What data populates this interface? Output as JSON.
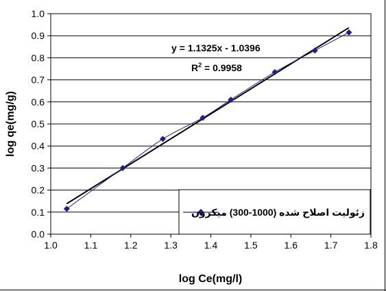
{
  "chart_data": {
    "type": "scatter",
    "xlabel": "log Ce(mg/l)",
    "ylabel": "log qe(mg/g)",
    "xlim": [
      1.0,
      1.8
    ],
    "ylim": [
      0.0,
      1.0
    ],
    "xticks": [
      "1.0",
      "1.1",
      "1.2",
      "1.3",
      "1.4",
      "1.5",
      "1.6",
      "1.7",
      "1.8"
    ],
    "yticks": [
      "0.0",
      "0.1",
      "0.2",
      "0.3",
      "0.4",
      "0.5",
      "0.6",
      "0.7",
      "0.8",
      "0.9",
      "1.0"
    ],
    "grid": "horizontal",
    "legend_position": "bottom-right",
    "series": [
      {
        "name": "زئولیت اصلاح شده (1000-300) میکرون",
        "color": "#1f1f8c",
        "marker": "diamond",
        "smooth": true,
        "x": [
          1.04,
          1.18,
          1.28,
          1.38,
          1.45,
          1.56,
          1.66,
          1.745
        ],
        "y": [
          0.115,
          0.3,
          0.432,
          0.528,
          0.61,
          0.735,
          0.833,
          0.915
        ]
      }
    ],
    "trendline": {
      "color": "#000000",
      "slope": 1.1325,
      "intercept": -1.0396,
      "x_range": [
        1.04,
        1.745
      ]
    },
    "annotations": {
      "equation": "y = 1.1325x - 1.0396",
      "r2_prefix": "R",
      "r2_sup": "2",
      "r2_value": " = 0.9958"
    }
  }
}
